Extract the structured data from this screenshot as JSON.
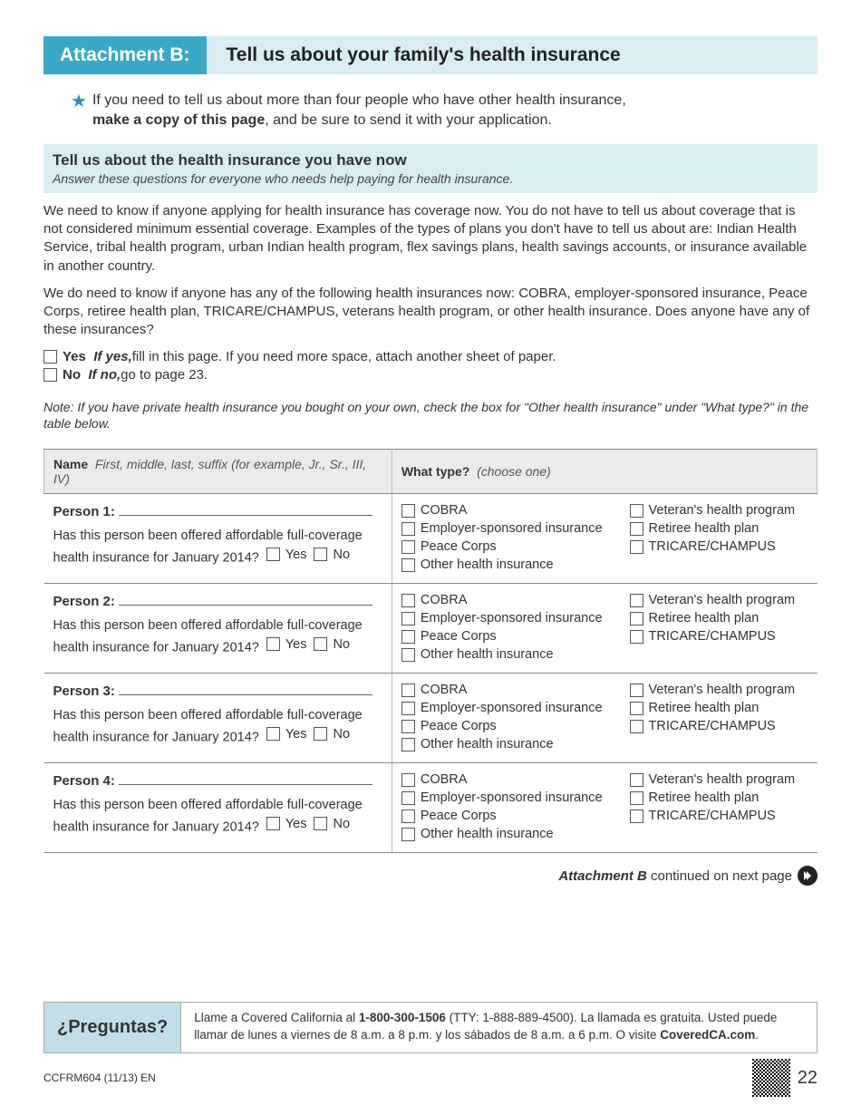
{
  "colors": {
    "accent": "#3aa8c7",
    "light_accent": "#d9edf3",
    "footer_accent": "#c0dfe8",
    "table_header_bg": "#ebebeb",
    "border": "#888"
  },
  "header": {
    "attachment_label": "Attachment B:",
    "title": "Tell us about your family's health insurance"
  },
  "star_note": {
    "line1": "If you need to tell us about more than four people who have other health insurance,",
    "line2_bold": "make a copy of this page",
    "line2_rest": ", and be sure to send it with your application."
  },
  "section": {
    "title": "Tell us about the health insurance you have now",
    "sub": "Answer these questions for everyone who needs help paying for health insurance."
  },
  "para1": "We need to know if anyone applying for health insurance has coverage now. You do not have to tell us about coverage that is not considered minimum essential coverage. Examples of the types of plans you don't have to tell us about are: Indian Health Service, tribal health program, urban Indian health program, flex savings plans, health savings accounts, or insurance available in another country.",
  "para2": "We do need to know if anyone has any of the following health insurances now: COBRA, employer-sponsored insurance, Peace Corps, retiree health plan, TRICARE/CHAMPUS, veterans health program, or other health insurance. Does anyone have any of these insurances?",
  "yes_label": "Yes",
  "yes_italic": "If yes,",
  "yes_rest": " fill in this page.  If you need more space, attach another sheet of paper.",
  "no_label": "No",
  "no_italic": "If no,",
  "no_rest": " go to page 23.",
  "note": "Note:  If you have private health insurance you bought on your own, check the box for \"Other health insurance\" under \"What type?\" in the table below.",
  "table": {
    "col1_label": "Name",
    "col1_hint": "First, middle, last, suffix (for example, Jr., Sr., III, IV)",
    "col2_label": "What type?",
    "col2_hint": "(choose one)",
    "offered_q": "Has this person been offered affordable full-coverage health insurance for January 2014?",
    "yes": "Yes",
    "no": "No",
    "persons": [
      "Person 1:",
      "Person 2:",
      "Person 3:",
      "Person 4:"
    ],
    "types_col1": [
      "COBRA",
      "Employer-sponsored insurance",
      "Peace Corps",
      "Other health insurance"
    ],
    "types_col2": [
      "Veteran's health program",
      "Retiree health plan",
      "TRICARE/CHAMPUS"
    ]
  },
  "continued": {
    "bold": "Attachment B",
    "rest": " continued on next page"
  },
  "footer": {
    "preguntas": "¿Preguntas?",
    "text_pre": "Llame a Covered California al ",
    "phone_bold": "1-800-300-1506",
    "text_mid": " (TTY: 1-888-889-4500). La llamada es gratuita. Usted puede llamar de lunes a viernes de 8 a.m. a 8 p.m. y los sábados de 8 a.m. a 6 p.m. O visite ",
    "site_bold": "CoveredCA.com",
    "text_end": ".",
    "formcode": "CCFRM604 (11/13) EN",
    "pagenum": "22"
  }
}
